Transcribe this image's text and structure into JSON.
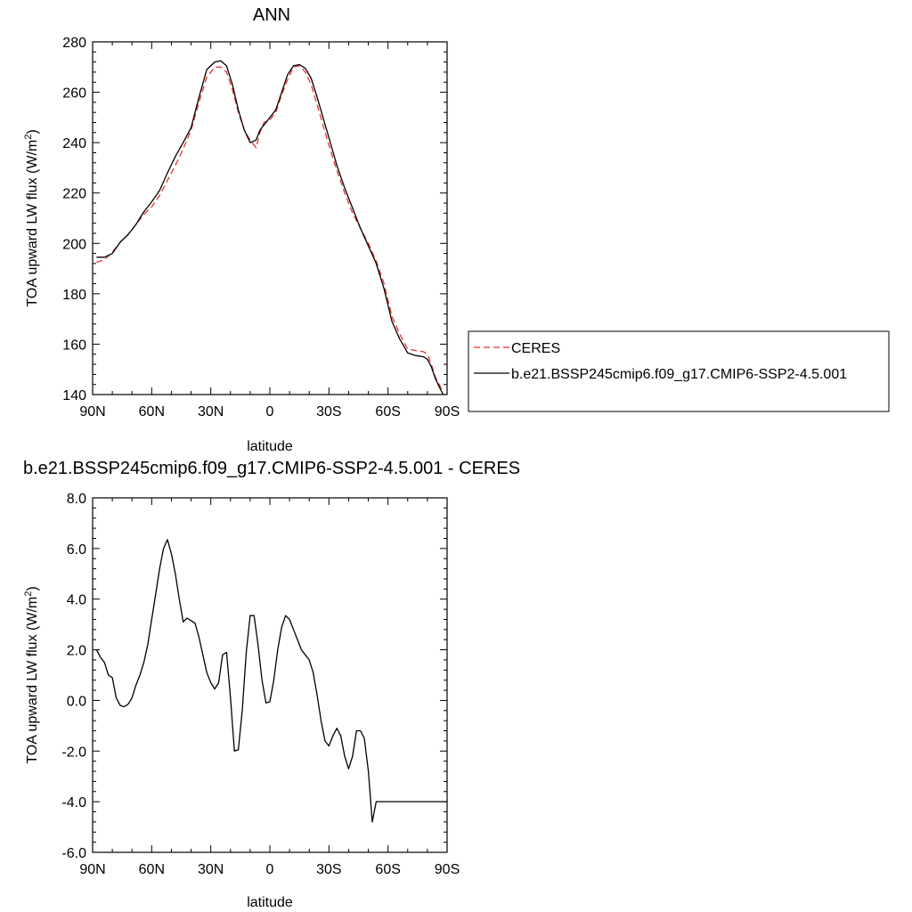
{
  "colors": {
    "model": "#000000",
    "obs": "#e8322e"
  },
  "chart_data": [
    {
      "type": "line",
      "title": "ANN",
      "xlabel": "latitude",
      "ylabel": "TOA upward LW flux (W/m",
      "ylabel_sup": "2",
      "ylabel_end": ")",
      "xlim": [
        90,
        -90
      ],
      "ylim": [
        140,
        280
      ],
      "xticks": [
        {
          "value": 90,
          "label": "90N"
        },
        {
          "value": 60,
          "label": "60N"
        },
        {
          "value": 30,
          "label": "30N"
        },
        {
          "value": 0,
          "label": "0"
        },
        {
          "value": -30,
          "label": "30S"
        },
        {
          "value": -60,
          "label": "60S"
        },
        {
          "value": -90,
          "label": "90S"
        }
      ],
      "yticks": [
        {
          "value": 140,
          "label": "140"
        },
        {
          "value": 160,
          "label": "160"
        },
        {
          "value": 180,
          "label": "180"
        },
        {
          "value": 200,
          "label": "200"
        },
        {
          "value": 220,
          "label": "220"
        },
        {
          "value": 240,
          "label": "240"
        },
        {
          "value": 260,
          "label": "260"
        },
        {
          "value": 280,
          "label": "280"
        }
      ],
      "legend_position": "right",
      "series": [
        {
          "name": "CERES",
          "style": "dashed",
          "x": [
            88,
            84,
            80,
            76,
            72,
            68,
            64,
            60,
            56,
            52,
            48,
            44,
            40,
            36,
            32,
            28,
            25,
            22,
            19,
            16,
            13,
            10,
            7,
            5,
            3,
            0,
            -3,
            -6,
            -9,
            -12,
            -15,
            -18,
            -21,
            -24,
            -27,
            -30,
            -34,
            -38,
            -42,
            -46,
            -50,
            -54,
            -58,
            -62,
            -66,
            -70,
            -74,
            -78,
            -80,
            -82,
            -84,
            -86,
            -88
          ],
          "y": [
            192.5,
            193.5,
            196.5,
            200.5,
            203.5,
            207.5,
            211.5,
            214.5,
            219,
            225,
            231,
            237.5,
            245,
            256,
            266,
            270,
            270,
            268,
            261,
            252,
            245,
            241,
            238,
            244,
            248,
            249,
            252,
            259,
            265,
            270,
            270.5,
            268,
            263,
            255,
            247,
            239,
            229,
            220,
            212,
            206,
            200,
            193,
            184,
            171,
            164,
            158,
            157.5,
            157,
            156,
            152,
            147,
            144,
            141
          ]
        },
        {
          "name": "b.e21.BSSP245cmip6.f09_g17.CMIP6-SSP2-4.5.001",
          "style": "solid",
          "x": [
            88,
            84,
            80,
            76,
            72,
            68,
            64,
            60,
            56,
            52,
            48,
            44,
            40,
            36,
            32,
            28,
            25,
            22,
            19,
            16,
            13,
            10,
            7,
            5,
            3,
            0,
            -3,
            -6,
            -9,
            -12,
            -15,
            -18,
            -21,
            -24,
            -27,
            -30,
            -34,
            -38,
            -42,
            -46,
            -50,
            -54,
            -58,
            -62,
            -66,
            -70,
            -74,
            -78,
            -80,
            -82,
            -84,
            -86,
            -88
          ],
          "y": [
            194.5,
            194.5,
            196,
            200.5,
            203.5,
            207.5,
            212.5,
            216.5,
            221,
            228,
            234.5,
            240,
            246,
            258,
            269,
            272,
            272.5,
            270.5,
            263,
            253,
            245,
            240,
            241,
            245,
            247,
            250,
            253,
            260,
            267,
            270.5,
            271,
            269.5,
            265.5,
            258,
            250,
            242,
            231,
            222,
            214,
            206,
            199,
            192,
            182,
            169,
            162,
            156.5,
            155.5,
            155,
            154,
            151,
            146.5,
            143,
            140
          ]
        }
      ]
    },
    {
      "type": "line",
      "title": "b.e21.BSSP245cmip6.f09_g17.CMIP6-SSP2-4.5.001 - CERES",
      "xlabel": "latitude",
      "ylabel": "TOA upward LW flux (W/m",
      "ylabel_sup": "2",
      "ylabel_end": ")",
      "xlim": [
        90,
        -90
      ],
      "ylim": [
        -6,
        8
      ],
      "xticks": [
        {
          "value": 90,
          "label": "90N"
        },
        {
          "value": 60,
          "label": "60N"
        },
        {
          "value": 30,
          "label": "30N"
        },
        {
          "value": 0,
          "label": "0"
        },
        {
          "value": -30,
          "label": "30S"
        },
        {
          "value": -60,
          "label": "60S"
        },
        {
          "value": -90,
          "label": "90S"
        }
      ],
      "yticks": [
        {
          "value": -6,
          "label": "-6.0"
        },
        {
          "value": -4,
          "label": "-4.0"
        },
        {
          "value": -2,
          "label": "-2.0"
        },
        {
          "value": 0,
          "label": "0.0"
        },
        {
          "value": 2,
          "label": "2.0"
        },
        {
          "value": 4,
          "label": "4.0"
        },
        {
          "value": 6,
          "label": "6.0"
        },
        {
          "value": 8,
          "label": "8.0"
        }
      ],
      "series": [
        {
          "style": "solid",
          "x": [
            88,
            86,
            84,
            82,
            80,
            78,
            76,
            74,
            72,
            70,
            68,
            66,
            64,
            62,
            60,
            58,
            56,
            54,
            52,
            50,
            48,
            46,
            44,
            42,
            40,
            38,
            36,
            34,
            32,
            30,
            28,
            26,
            24,
            22,
            20,
            18,
            16,
            14,
            12,
            10,
            8,
            6,
            4,
            2,
            0,
            -2,
            -4,
            -6,
            -8,
            -10,
            -12,
            -14,
            -16,
            -18,
            -20,
            -22,
            -24,
            -26,
            -28,
            -30,
            -32,
            -34,
            -36,
            -38,
            -40,
            -42,
            -44,
            -46,
            -48,
            -50,
            -52,
            -54,
            -56,
            -58,
            -60,
            -62,
            -64,
            -66,
            -68,
            -70,
            -72,
            -74,
            -76,
            -78,
            -80,
            -82,
            -84,
            -86,
            -88,
            -90
          ],
          "y": [
            2.0,
            1.7,
            1.5,
            1.0,
            0.9,
            0.1,
            -0.2,
            -0.25,
            -0.15,
            0.1,
            0.6,
            1.0,
            1.5,
            2.2,
            3.2,
            4.2,
            5.2,
            6.0,
            6.35,
            5.8,
            5.0,
            4.0,
            3.1,
            3.25,
            3.15,
            3.05,
            2.5,
            1.8,
            1.1,
            0.7,
            0.45,
            0.7,
            1.8,
            1.9,
            0.1,
            -2.0,
            -1.95,
            -0.4,
            1.9,
            3.35,
            3.35,
            2.2,
            0.8,
            -0.1,
            -0.05,
            0.8,
            2.0,
            2.9,
            3.35,
            3.2,
            2.8,
            2.4,
            2.0,
            1.8,
            1.6,
            1.1,
            0.2,
            -0.8,
            -1.6,
            -1.8,
            -1.4,
            -1.1,
            -1.4,
            -2.2,
            -2.7,
            -2.2,
            -1.2,
            -1.2,
            -1.5,
            -2.8,
            -4.8,
            -4.0,
            -4.0,
            -4.0,
            -4.0,
            -4.0,
            -4.0,
            -4.0,
            -4.0,
            -4.0,
            -4.0,
            -4.0,
            -4.0,
            -4.0,
            -4.0,
            -4.0,
            -4.0,
            -4.0,
            -4.0,
            -4.0
          ]
        }
      ]
    }
  ]
}
